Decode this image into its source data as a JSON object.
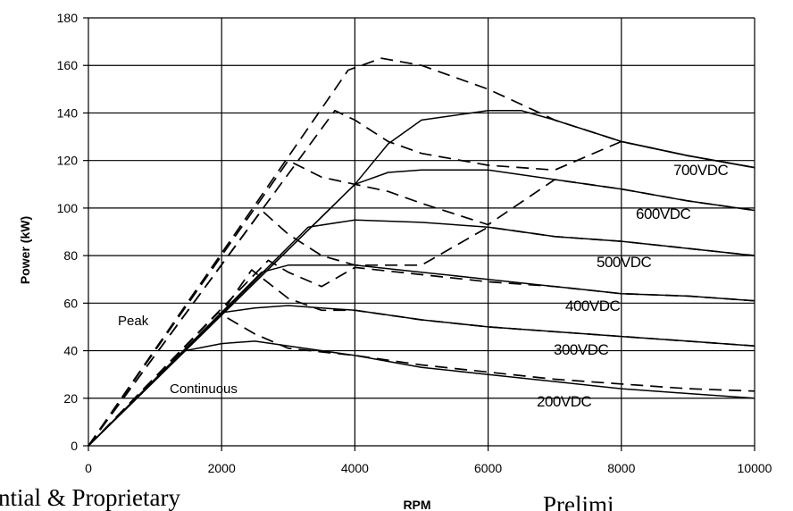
{
  "chart_data": {
    "type": "line",
    "title": "",
    "xlabel": "RPM",
    "ylabel": "Power (kW)",
    "xlim": [
      0,
      10000
    ],
    "ylim": [
      0,
      180
    ],
    "xticks": [
      "0",
      "2000",
      "4000",
      "6000",
      "8000",
      "10000"
    ],
    "yticks": [
      "0",
      "20",
      "40",
      "60",
      "80",
      "100",
      "120",
      "140",
      "160",
      "180"
    ],
    "grid": true,
    "annotations": [
      "Peak",
      "Continuous"
    ],
    "series": [
      {
        "name": "200VDC",
        "continuous": {
          "x": [
            0,
            1450,
            2000,
            2500,
            3000,
            4000,
            5000,
            6000,
            7000,
            8000,
            9000,
            10000
          ],
          "y": [
            0,
            40,
            43,
            44,
            42,
            38,
            33,
            30,
            27,
            24,
            22,
            20
          ]
        },
        "peak": {
          "x": [
            0,
            1950,
            2500,
            3000,
            4000,
            5000,
            6000,
            7000,
            8000,
            9000,
            10000
          ],
          "y": [
            0,
            56,
            47,
            41,
            38,
            34,
            31,
            28,
            26,
            24,
            23
          ]
        }
      },
      {
        "name": "300VDC",
        "continuous": {
          "x": [
            0,
            2000,
            2500,
            3000,
            3500,
            4000,
            5000,
            6000,
            7000,
            8000,
            9000,
            10000
          ],
          "y": [
            0,
            56,
            58,
            59,
            58,
            57,
            53,
            50,
            48,
            46,
            44,
            42
          ]
        },
        "peak": {
          "x": [
            0,
            2000,
            2450,
            3000,
            3500,
            4000,
            5000,
            6000,
            7000,
            8000,
            9000,
            10000
          ],
          "y": [
            0,
            56,
            74,
            62,
            57,
            57,
            53,
            50,
            48,
            46,
            44,
            42
          ]
        }
      },
      {
        "name": "400VDC",
        "continuous": {
          "x": [
            0,
            2600,
            3000,
            3500,
            4000,
            5000,
            6000,
            7000,
            8000,
            9000,
            10000
          ],
          "y": [
            0,
            73,
            76,
            76,
            76,
            73,
            70,
            67,
            64,
            63,
            61
          ]
        },
        "peak": {
          "x": [
            0,
            2700,
            3000,
            3500,
            4000,
            5000,
            6000,
            7000,
            8000,
            9000,
            10000
          ],
          "y": [
            0,
            78,
            73,
            67,
            75,
            72,
            69,
            67,
            64,
            63,
            61
          ]
        }
      },
      {
        "name": "500VDC",
        "continuous": {
          "x": [
            0,
            3300,
            4000,
            5000,
            6000,
            7000,
            8000,
            9000,
            10000
          ],
          "y": [
            0,
            92,
            95,
            94,
            92,
            88,
            86,
            83,
            80
          ]
        },
        "peak": {
          "x": [
            0,
            2600,
            3000,
            3500,
            4000,
            5000,
            6000,
            7000,
            8000,
            9000,
            10000
          ],
          "y": [
            0,
            99,
            89,
            80,
            76,
            76,
            92,
            88,
            86,
            83,
            80
          ]
        }
      },
      {
        "name": "600VDC",
        "continuous": {
          "x": [
            0,
            4000,
            4500,
            5000,
            6000,
            6500,
            7000,
            8000,
            9000,
            10000
          ],
          "y": [
            0,
            110,
            115,
            116,
            116,
            114,
            112,
            108,
            103,
            99
          ]
        },
        "peak": {
          "x": [
            0,
            3000,
            3500,
            4000,
            4500,
            5000,
            6000,
            7000,
            8000,
            9000,
            10000
          ],
          "y": [
            0,
            120,
            113,
            110,
            107,
            102,
            93,
            112,
            108,
            103,
            99
          ]
        }
      },
      {
        "name": "700VDC",
        "continuous": {
          "x": [
            0,
            4000,
            4500,
            5000,
            6000,
            6500,
            7000,
            8000,
            9000,
            10000
          ],
          "y": [
            0,
            110,
            127,
            137,
            141,
            141,
            137,
            128,
            122,
            117
          ]
        },
        "peak": {
          "x": [
            0,
            3700,
            4000,
            4500,
            5000,
            6000,
            7000,
            8000,
            9000,
            10000
          ],
          "y": [
            0,
            141,
            137,
            128,
            123,
            118,
            116,
            128,
            122,
            117
          ]
        }
      },
      {
        "name": "",
        "continuous": {
          "x": [],
          "y": []
        },
        "peak": {
          "x": [
            0,
            3900,
            4400,
            5000,
            6000,
            6700,
            7000,
            8000,
            9000,
            10000
          ],
          "y": [
            0,
            158,
            163,
            160,
            150,
            141,
            137,
            128,
            122,
            117
          ]
        }
      }
    ]
  },
  "page": {
    "footer_left": "ntial & Proprietary",
    "footer_right": "Prelimi"
  }
}
